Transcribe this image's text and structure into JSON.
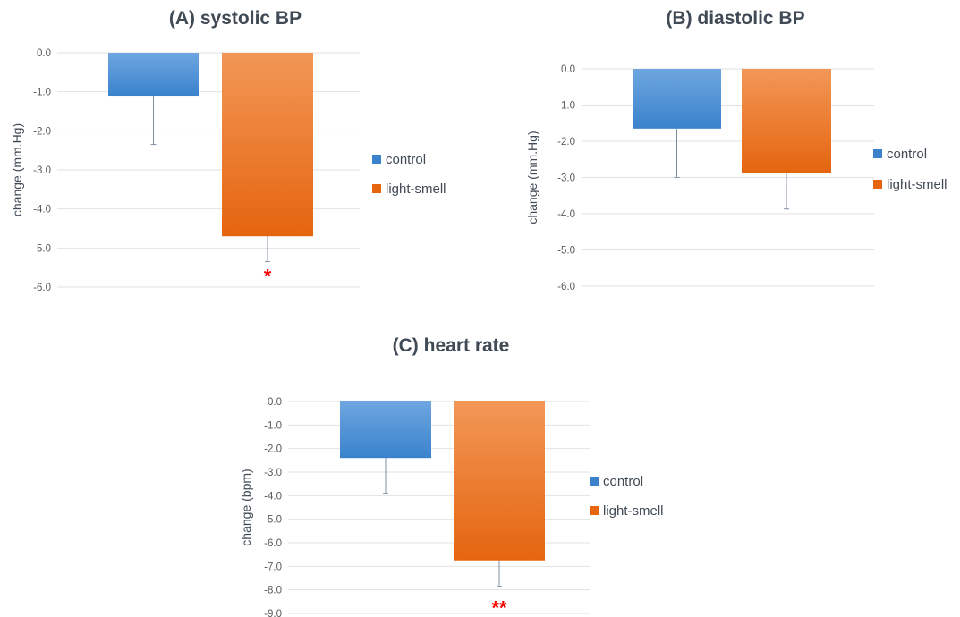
{
  "colors": {
    "control_top": "#6ea6e0",
    "control_bottom": "#3a83cc",
    "light_smell_top": "#f29757",
    "light_smell_bottom": "#e5650f",
    "significance": "#ff0000"
  },
  "chart_data": [
    {
      "type": "bar",
      "title": "(A) systolic BP",
      "ylabel": "change (mm.Hg)",
      "ylim": [
        -6.0,
        0.0
      ],
      "yticks": [
        "0.0",
        "-1.0",
        "-2.0",
        "-3.0",
        "-4.0",
        "-5.0",
        "-6.0"
      ],
      "grid": true,
      "legend_position": "right",
      "series": [
        {
          "name": "control",
          "value": -1.1,
          "error": 1.25,
          "significance": ""
        },
        {
          "name": "light-smell",
          "value": -4.7,
          "error": 0.65,
          "significance": "*"
        }
      ]
    },
    {
      "type": "bar",
      "title": "(B) diastolic BP",
      "ylabel": "change (mm.Hg)",
      "ylim": [
        -6.0,
        0.0
      ],
      "yticks": [
        "0.0",
        "-1.0",
        "-2.0",
        "-3.0",
        "-4.0",
        "-5.0",
        "-6.0"
      ],
      "grid": true,
      "legend_position": "right",
      "series": [
        {
          "name": "control",
          "value": -1.65,
          "error": 1.35,
          "significance": ""
        },
        {
          "name": "light-smell",
          "value": -2.87,
          "error": 1.0,
          "significance": ""
        }
      ]
    },
    {
      "type": "bar",
      "title": "(C) heart rate",
      "ylabel": "change (bpm)",
      "ylim": [
        -9.0,
        0.0
      ],
      "yticks": [
        "0.0",
        "-1.0",
        "-2.0",
        "-3.0",
        "-4.0",
        "-5.0",
        "-6.0",
        "-7.0",
        "-8.0",
        "-9.0"
      ],
      "grid": true,
      "legend_position": "right",
      "series": [
        {
          "name": "control",
          "value": -2.4,
          "error": 1.5,
          "significance": ""
        },
        {
          "name": "light-smell",
          "value": -6.75,
          "error": 1.1,
          "significance": "**"
        }
      ]
    }
  ]
}
